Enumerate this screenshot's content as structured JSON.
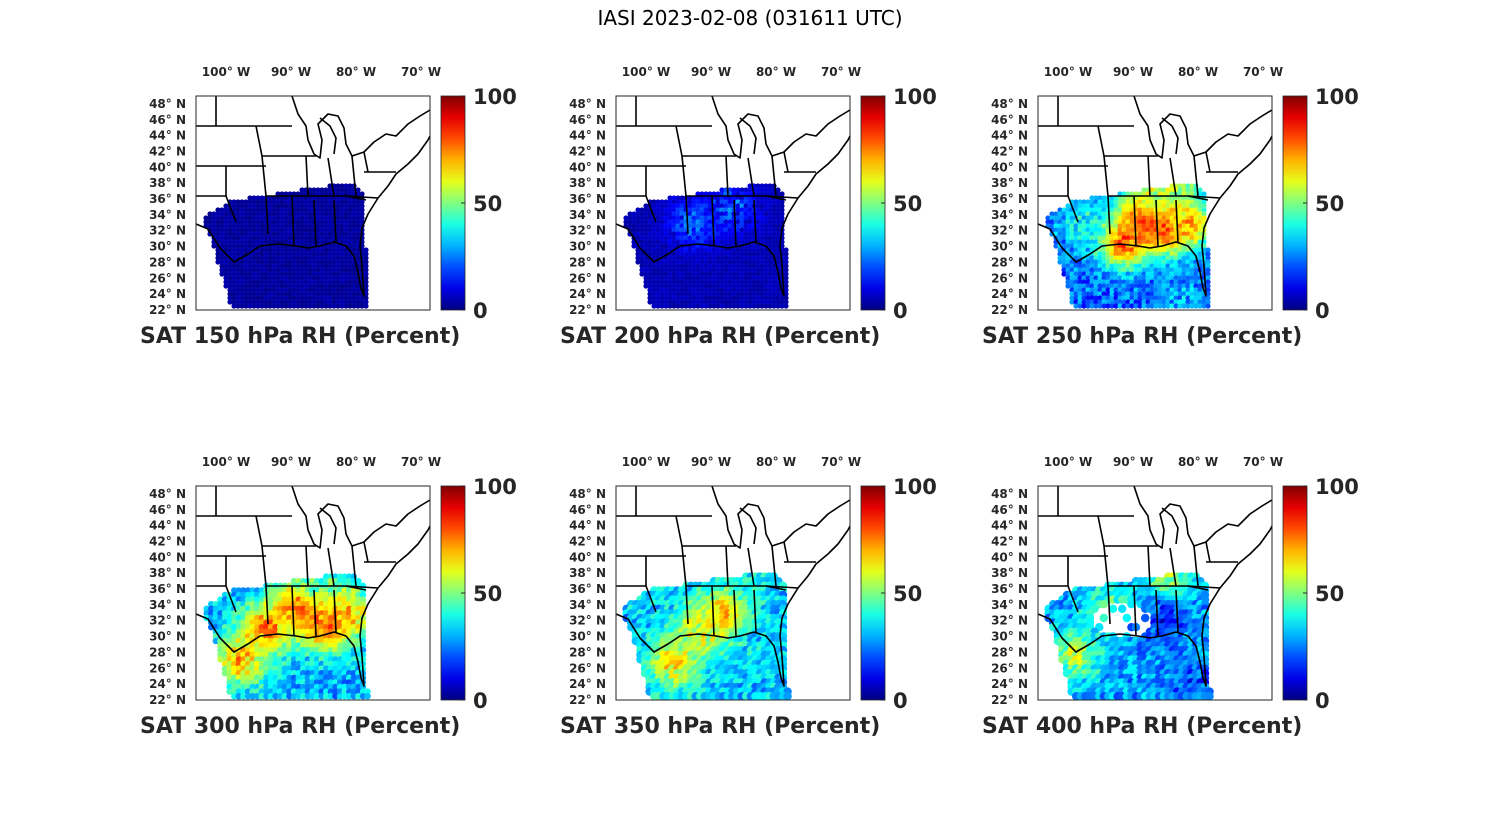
{
  "figure_title": "IASI 2023-02-08 (031611 UTC)",
  "colors": {
    "land": "#ffffff",
    "borders": "#000000",
    "colormap": "jet"
  },
  "chart_data": [
    {
      "type": "heatmap",
      "title": "SAT 150 hPa RH (Percent)",
      "variable": "RH",
      "level_hPa": 150,
      "units": "Percent",
      "x_ticks": [
        "100° W",
        "90° W",
        "80° W",
        "70° W"
      ],
      "y_ticks": [
        "48° N",
        "46° N",
        "44° N",
        "42° N",
        "40° N",
        "38° N",
        "36° N",
        "34° N",
        "32° N",
        "30° N",
        "28° N",
        "26° N",
        "24° N",
        "22° N"
      ],
      "lon_range": [
        -104,
        -68
      ],
      "lat_range": [
        22,
        49
      ],
      "colorbar": {
        "min": 0,
        "max": 100,
        "ticks": [
          "100",
          "50",
          "0"
        ]
      },
      "rh_typical": 3,
      "regions": []
    },
    {
      "type": "heatmap",
      "title": "SAT 200 hPa RH (Percent)",
      "variable": "RH",
      "level_hPa": 200,
      "units": "Percent",
      "x_ticks": [
        "100° W",
        "90° W",
        "80° W",
        "70° W"
      ],
      "y_ticks": [
        "48° N",
        "46° N",
        "44° N",
        "42° N",
        "40° N",
        "38° N",
        "36° N",
        "34° N",
        "32° N",
        "30° N",
        "28° N",
        "26° N",
        "24° N",
        "22° N"
      ],
      "lon_range": [
        -104,
        -68
      ],
      "lat_range": [
        22,
        49
      ],
      "colorbar": {
        "min": 0,
        "max": 100,
        "ticks": [
          "100",
          "50",
          "0"
        ]
      },
      "rh_typical": 5,
      "regions": [
        {
          "lon": -92,
          "lat": 33,
          "rh": 20
        },
        {
          "lon": -86,
          "lat": 35,
          "rh": 18
        }
      ]
    },
    {
      "type": "heatmap",
      "title": "SAT 250 hPa RH (Percent)",
      "variable": "RH",
      "level_hPa": 250,
      "units": "Percent",
      "x_ticks": [
        "100° W",
        "90° W",
        "80° W",
        "70° W"
      ],
      "y_ticks": [
        "48° N",
        "46° N",
        "44° N",
        "42° N",
        "40° N",
        "38° N",
        "36° N",
        "34° N",
        "32° N",
        "30° N",
        "28° N",
        "26° N",
        "24° N",
        "22° N"
      ],
      "lon_range": [
        -104,
        -68
      ],
      "lat_range": [
        22,
        49
      ],
      "colorbar": {
        "min": 0,
        "max": 100,
        "ticks": [
          "100",
          "50",
          "0"
        ]
      },
      "rh_typical": 22,
      "regions": [
        {
          "lon": -88,
          "lat": 33.5,
          "rh": 85
        },
        {
          "lon": -84,
          "lat": 32.5,
          "rh": 90
        },
        {
          "lon": -91,
          "lat": 30.5,
          "rh": 80
        },
        {
          "lon": -81,
          "lat": 33,
          "rh": 70
        },
        {
          "lon": -86,
          "lat": 37,
          "rh": 60
        },
        {
          "lon": -83,
          "lat": 38.5,
          "rh": 55
        },
        {
          "lon": -97,
          "lat": 33,
          "rh": 40
        },
        {
          "lon": -82,
          "lat": 24,
          "rh": 30
        }
      ]
    },
    {
      "type": "heatmap",
      "title": "SAT 300 hPa RH (Percent)",
      "variable": "RH",
      "level_hPa": 300,
      "units": "Percent",
      "x_ticks": [
        "100° W",
        "90° W",
        "80° W",
        "70° W"
      ],
      "y_ticks": [
        "48° N",
        "46° N",
        "44° N",
        "42° N",
        "40° N",
        "38° N",
        "36° N",
        "34° N",
        "32° N",
        "30° N",
        "28° N",
        "26° N",
        "24° N",
        "22° N"
      ],
      "lon_range": [
        -104,
        -68
      ],
      "lat_range": [
        22,
        49
      ],
      "colorbar": {
        "min": 0,
        "max": 100,
        "ticks": [
          "100",
          "50",
          "0"
        ]
      },
      "rh_typical": 30,
      "regions": [
        {
          "lon": -88,
          "lat": 34,
          "rh": 80
        },
        {
          "lon": -84,
          "lat": 31.5,
          "rh": 85
        },
        {
          "lon": -93,
          "lat": 31,
          "rh": 75
        },
        {
          "lon": -97,
          "lat": 27,
          "rh": 70
        },
        {
          "lon": -81,
          "lat": 33,
          "rh": 70
        },
        {
          "lon": -85,
          "lat": 37.5,
          "rh": 45
        }
      ]
    },
    {
      "type": "heatmap",
      "title": "SAT 350 hPa RH (Percent)",
      "variable": "RH",
      "level_hPa": 350,
      "units": "Percent",
      "x_ticks": [
        "100° W",
        "90° W",
        "80° W",
        "70° W"
      ],
      "y_ticks": [
        "48° N",
        "46° N",
        "44° N",
        "42° N",
        "40° N",
        "38° N",
        "36° N",
        "34° N",
        "32° N",
        "30° N",
        "28° N",
        "26° N",
        "24° N",
        "22° N"
      ],
      "lon_range": [
        -104,
        -68
      ],
      "lat_range": [
        22,
        49
      ],
      "colorbar": {
        "min": 0,
        "max": 100,
        "ticks": [
          "100",
          "50",
          "0"
        ]
      },
      "rh_typical": 32,
      "regions": [
        {
          "lon": -87,
          "lat": 32.5,
          "rh": 75
        },
        {
          "lon": -95,
          "lat": 26.5,
          "rh": 65
        },
        {
          "lon": -91,
          "lat": 30.5,
          "rh": 60
        },
        {
          "lon": -84,
          "lat": 38,
          "rh": 40
        },
        {
          "lon": -82,
          "lat": 29,
          "rh": 35
        }
      ]
    },
    {
      "type": "heatmap",
      "title": "SAT 400 hPa RH (Percent)",
      "variable": "RH",
      "level_hPa": 400,
      "units": "Percent",
      "x_ticks": [
        "100° W",
        "90° W",
        "80° W",
        "70° W"
      ],
      "y_ticks": [
        "48° N",
        "46° N",
        "44° N",
        "42° N",
        "40° N",
        "38° N",
        "36° N",
        "34° N",
        "32° N",
        "30° N",
        "28° N",
        "26° N",
        "24° N",
        "22° N"
      ],
      "lon_range": [
        -104,
        -68
      ],
      "lat_range": [
        22,
        49
      ],
      "colorbar": {
        "min": 0,
        "max": 100,
        "ticks": [
          "100",
          "50",
          "0"
        ]
      },
      "rh_typical": 28,
      "missing_area": {
        "lon": -91,
        "lat": 32
      },
      "regions": [
        {
          "lon": -98,
          "lat": 27.5,
          "rh": 55
        },
        {
          "lon": -84,
          "lat": 37,
          "rh": 55
        },
        {
          "lon": -93,
          "lat": 34,
          "rh": 45
        },
        {
          "lon": -80,
          "lat": 24,
          "rh": 20
        },
        {
          "lon": -85,
          "lat": 32,
          "rh": 15
        }
      ]
    }
  ]
}
